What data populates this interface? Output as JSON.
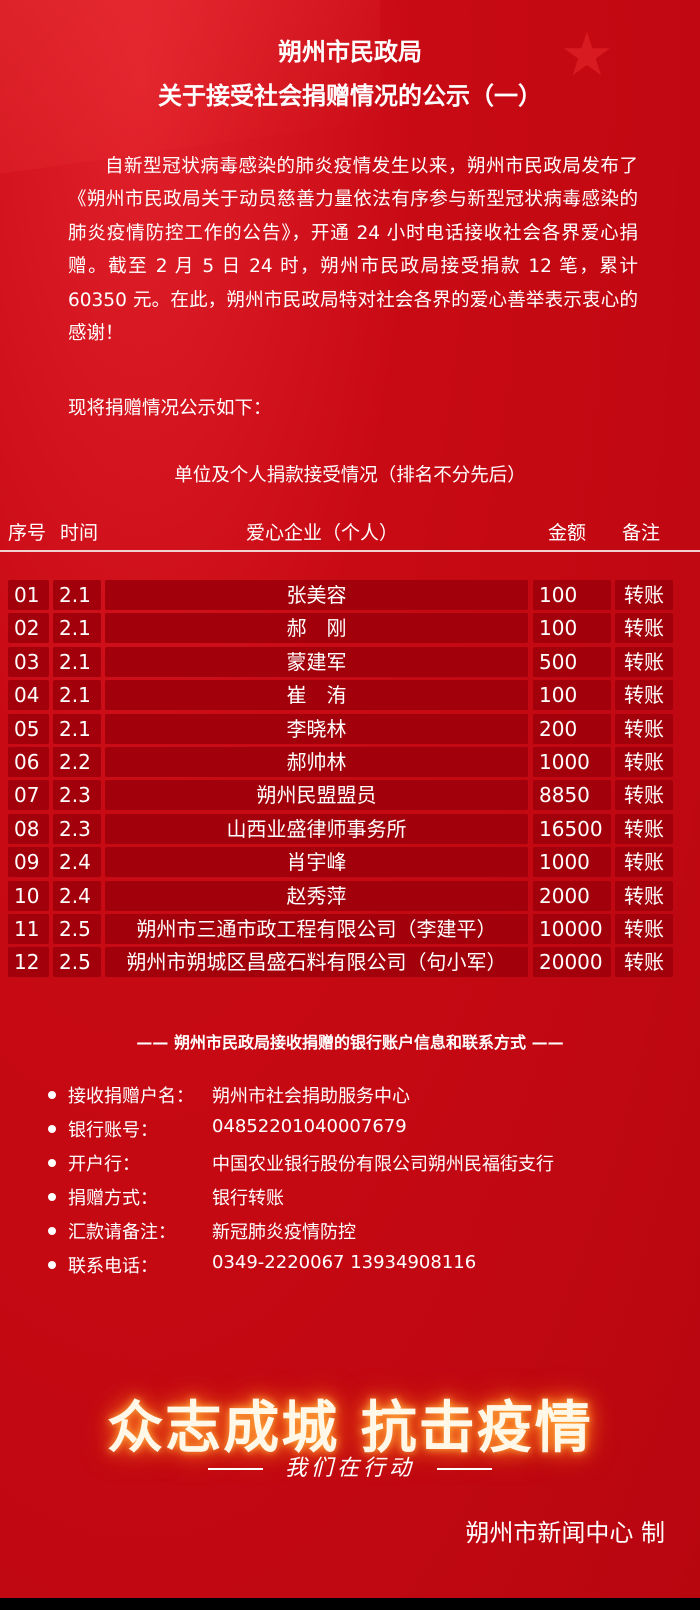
{
  "header": {
    "title_line1": "朔州市民政局",
    "title_line2": "关于接受社会捐赠情况的公示（一）"
  },
  "intro": "自新型冠状病毒感染的肺炎疫情发生以来，朔州市民政局发布了《朔州市民政局关于动员慈善力量依法有序参与新型冠状病毒感染的肺炎疫情防控工作的公告》，开通 24 小时电话接收社会各界爱心捐赠。截至 2 月 5 日 24 时，朔州市民政局接受捐款 12 笔，累计 60350 元。在此，朔州市民政局特对社会各界的爱心善举表示衷心的感谢！",
  "announce": "现将捐赠情况公示如下：",
  "table_title": "单位及个人捐款接受情况（排名不分先后）",
  "table": {
    "headers": [
      "序号",
      "时间",
      "爱心企业（个人）",
      "金额",
      "备注"
    ],
    "rows": [
      [
        "01",
        "2.1",
        "张美容",
        "100",
        "转账"
      ],
      [
        "02",
        "2.1",
        "郝　刚",
        "100",
        "转账"
      ],
      [
        "03",
        "2.1",
        "蒙建军",
        "500",
        "转账"
      ],
      [
        "04",
        "2.1",
        "崔　洧",
        "100",
        "转账"
      ],
      [
        "05",
        "2.1",
        "李晓林",
        "200",
        "转账"
      ],
      [
        "06",
        "2.2",
        "郝帅林",
        "1000",
        "转账"
      ],
      [
        "07",
        "2.3",
        "朔州民盟盟员",
        "8850",
        "转账"
      ],
      [
        "08",
        "2.3",
        "山西业盛律师事务所",
        "16500",
        "转账"
      ],
      [
        "09",
        "2.4",
        "肖宇峰",
        "1000",
        "转账"
      ],
      [
        "10",
        "2.4",
        "赵秀萍",
        "2000",
        "转账"
      ],
      [
        "11",
        "2.5",
        "朔州市三通市政工程有限公司（李建平）",
        "10000",
        "转账"
      ],
      [
        "12",
        "2.5",
        "朔州市朔城区昌盛石料有限公司（句小军）",
        "20000",
        "转账"
      ]
    ]
  },
  "bank": {
    "title": "—— 朔州市民政局接收捐赠的银行账户信息和联系方式 ——",
    "items": [
      {
        "label": "接收捐赠户名：",
        "value": "朔州市社会捐助服务中心"
      },
      {
        "label": "银行账号：",
        "value": "04852201040007679"
      },
      {
        "label": "开户行：",
        "value": "中国农业银行股份有限公司朔州民福街支行"
      },
      {
        "label": "捐赠方式：",
        "value": "银行转账"
      },
      {
        "label": "汇款请备注：",
        "value": "新冠肺炎疫情防控"
      },
      {
        "label": "联系电话：",
        "value": "0349-2220067 13934908116"
      }
    ]
  },
  "footer": {
    "slogan": "众志成城 抗击疫情",
    "action": "我们在行动",
    "credit": "朔州市新闻中心 制"
  },
  "colors": {
    "background": "#c80a14",
    "cell": "#a2000a",
    "text": "#ffffff",
    "glow": "#ff8020"
  }
}
